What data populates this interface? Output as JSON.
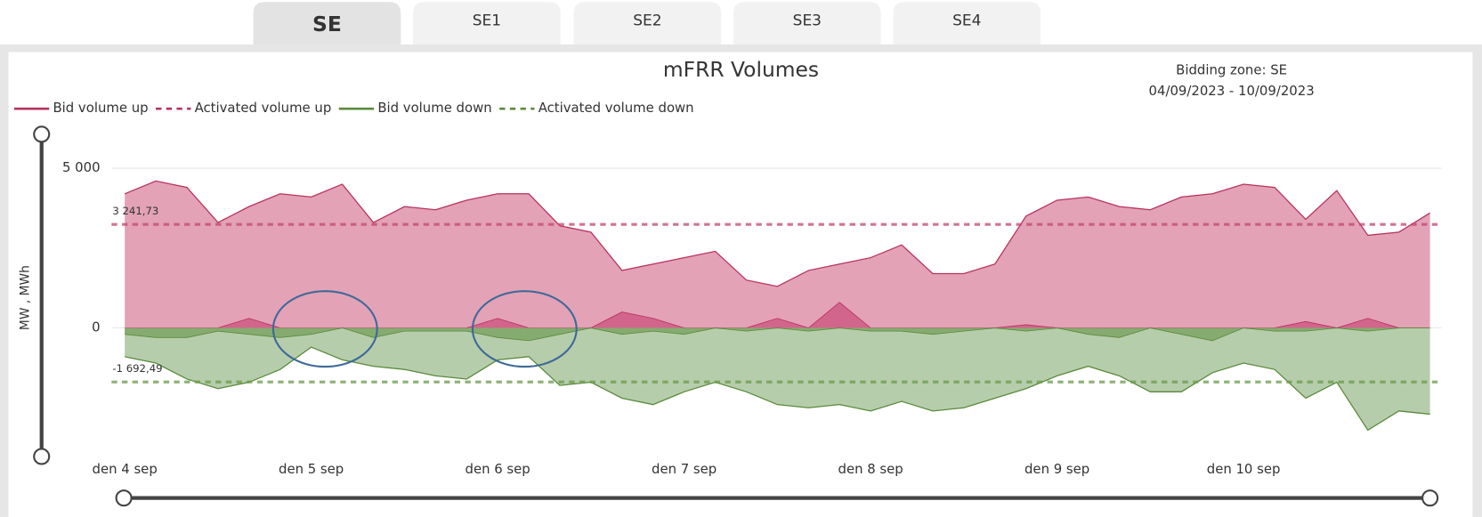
{
  "tabs": [
    "SE",
    "SE1",
    "SE2",
    "SE3",
    "SE4"
  ],
  "info": {
    "zone": "Bidding zone: SE",
    "period": "04/09/2023 - 10/09/2023"
  },
  "chart_data": {
    "type": "area",
    "title": "mFRR Volumes",
    "y_label": "MW , MWh",
    "categories": [
      "den 4 sep",
      null,
      null,
      null,
      null,
      null,
      "den 5 sep",
      null,
      null,
      null,
      null,
      null,
      "den 6 sep",
      null,
      null,
      null,
      null,
      null,
      "den 7 sep",
      null,
      null,
      null,
      null,
      null,
      "den 8 sep",
      null,
      null,
      null,
      null,
      null,
      "den 9 sep",
      null,
      null,
      null,
      null,
      null,
      "den 10 sep",
      null,
      null,
      null,
      null,
      null,
      null
    ],
    "series": [
      {
        "name": "Bid volume up",
        "color": "#b8325f",
        "fill": "#e3a2b6",
        "dash": false,
        "values": [
          4200,
          4600,
          4400,
          3300,
          3800,
          4200,
          4100,
          4500,
          3300,
          3800,
          3700,
          4000,
          4200,
          4200,
          3200,
          3000,
          1800,
          2000,
          2200,
          2400,
          1500,
          1300,
          1800,
          2000,
          2200,
          2600,
          1700,
          1700,
          2000,
          3500,
          4000,
          4100,
          3800,
          3700,
          4100,
          4200,
          4500,
          4400,
          3400,
          4300,
          2900,
          3000,
          3600
        ]
      },
      {
        "name": "Activated volume up",
        "color": "#b8325f",
        "fill": "#d2658c",
        "dash": true,
        "values": [
          0,
          0,
          0,
          0,
          300,
          0,
          0,
          0,
          0,
          0,
          0,
          0,
          300,
          0,
          0,
          0,
          500,
          300,
          0,
          0,
          0,
          300,
          0,
          800,
          0,
          0,
          0,
          0,
          0,
          100,
          0,
          0,
          0,
          0,
          0,
          0,
          0,
          0,
          200,
          0,
          300,
          0,
          0
        ]
      },
      {
        "name": "Bid volume down",
        "color": "#5a8a3c",
        "fill": "#b6cdab",
        "dash": false,
        "values": [
          -900,
          -1100,
          -1600,
          -1900,
          -1700,
          -1300,
          -600,
          -1000,
          -1200,
          -1300,
          -1500,
          -1600,
          -1000,
          -900,
          -1800,
          -1700,
          -2200,
          -2400,
          -2000,
          -1700,
          -2000,
          -2400,
          -2500,
          -2400,
          -2600,
          -2300,
          -2600,
          -2500,
          -2200,
          -1900,
          -1500,
          -1200,
          -1500,
          -2000,
          -2000,
          -1400,
          -1100,
          -1300,
          -2200,
          -1700,
          -3200,
          -2600,
          -2700
        ]
      },
      {
        "name": "Activated volume down",
        "color": "#5a8a3c",
        "fill": "#86ab70",
        "dash": true,
        "values": [
          -200,
          -300,
          -300,
          -100,
          -200,
          -300,
          -200,
          0,
          -300,
          -100,
          -100,
          -100,
          -300,
          -400,
          -200,
          0,
          -200,
          -100,
          -200,
          0,
          -100,
          0,
          -100,
          0,
          -100,
          -100,
          -200,
          -100,
          0,
          -100,
          0,
          -200,
          -300,
          0,
          -200,
          -400,
          0,
          -100,
          -100,
          0,
          -100,
          0,
          0
        ]
      }
    ],
    "reference_lines": [
      {
        "value": 3241.73,
        "label": "3 241,73",
        "color": "#c2466f"
      },
      {
        "value": -1692.49,
        "label": "-1 692,49",
        "color": "#6b9a4b"
      }
    ],
    "ylim": [
      -3900,
      6100
    ],
    "yticks": [
      0,
      {
        "value": 5000,
        "label": "5 000"
      }
    ],
    "grid": true,
    "legend": "top-left"
  }
}
